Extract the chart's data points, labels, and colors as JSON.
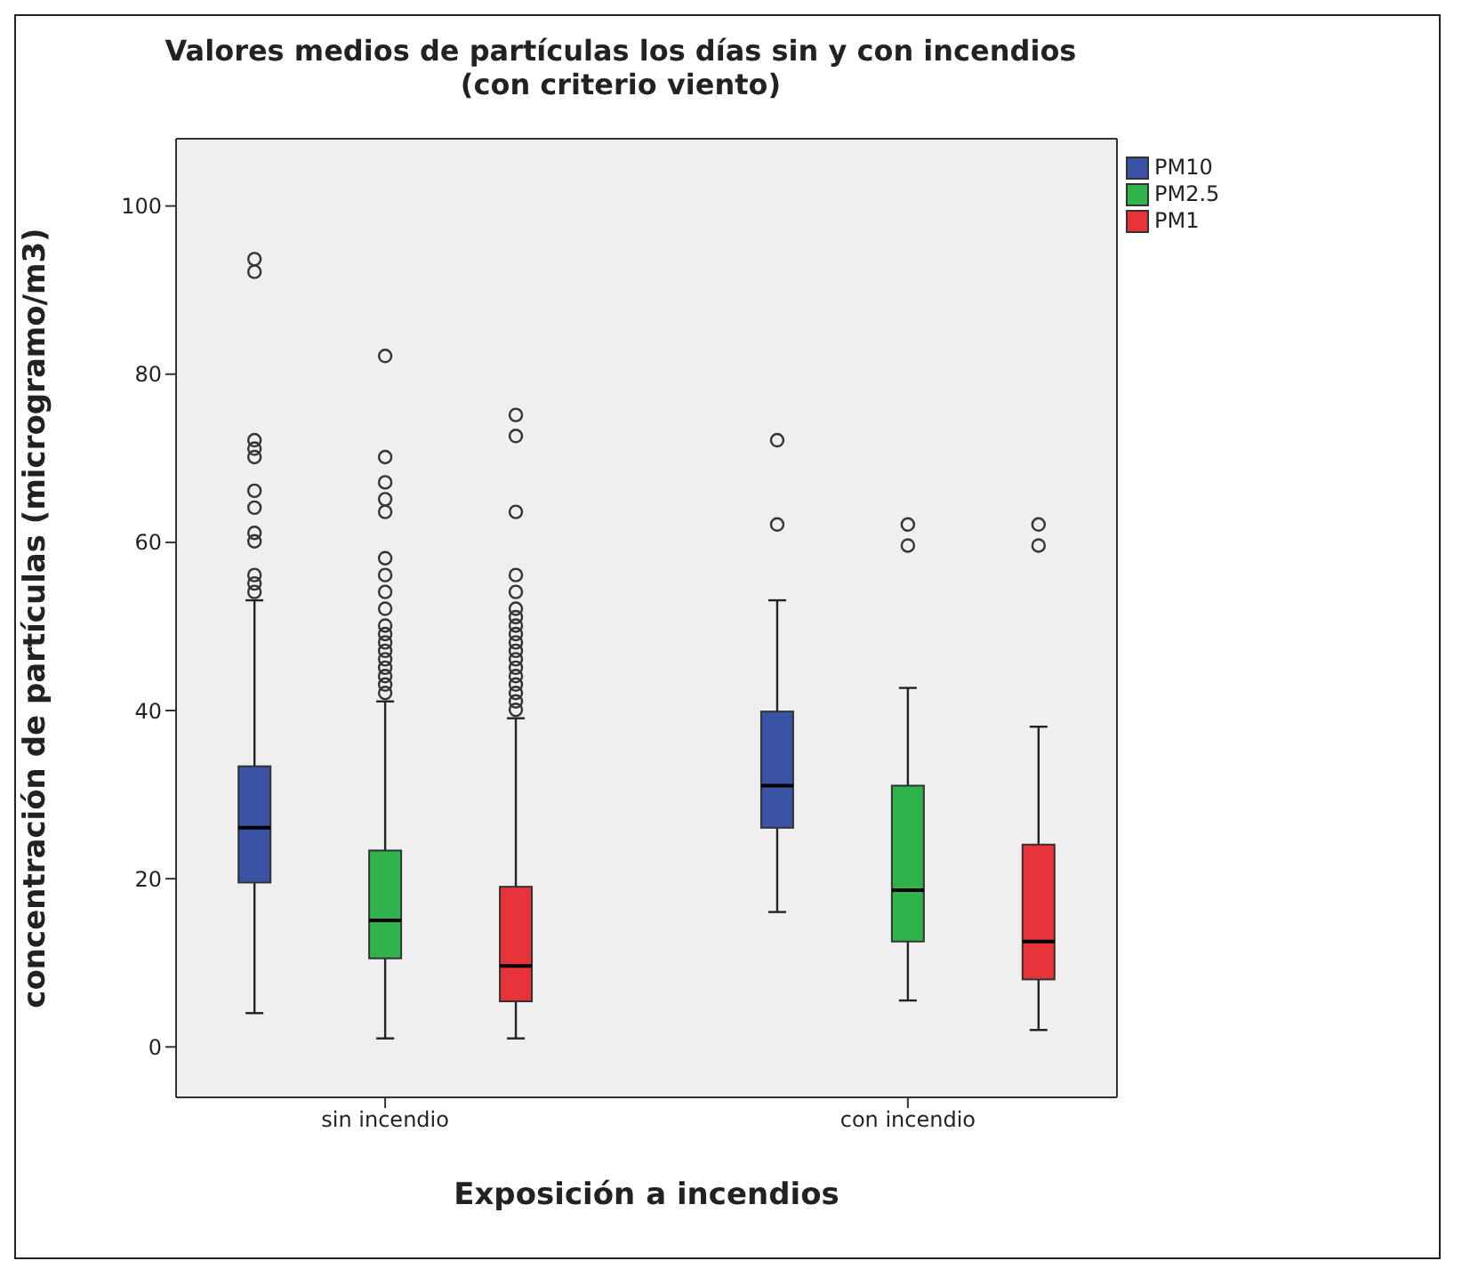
{
  "chart_data": {
    "type": "box",
    "title": "Valores medios de partículas los días sin y con incendios\n(con criterio viento)",
    "xlabel": "Exposición a incendios",
    "ylabel": "concentración de partículas (microgramo/m3)",
    "categories": [
      "sin incendio",
      "con incendio"
    ],
    "ylim": [
      -6,
      108
    ],
    "yticks": [
      0,
      20,
      40,
      60,
      80,
      100
    ],
    "grid": false,
    "legend": "top right",
    "series": [
      {
        "name": "PM10",
        "color": "#3a53a4",
        "boxes": [
          {
            "low": 4,
            "q1": 19.5,
            "median": 26,
            "q3": 33.3,
            "high": 53,
            "outliers": [
              54,
              55,
              56,
              60,
              61,
              64,
              66,
              70,
              71,
              72,
              92,
              93.5
            ]
          },
          {
            "low": 16,
            "q1": 26,
            "median": 31,
            "q3": 39.8,
            "high": 53,
            "outliers": [
              62,
              72
            ]
          }
        ]
      },
      {
        "name": "PM2.5",
        "color": "#2fb34a",
        "boxes": [
          {
            "low": 1,
            "q1": 10.5,
            "median": 15,
            "q3": 23.3,
            "high": 41,
            "outliers": [
              42,
              43,
              44,
              45,
              46,
              47,
              48,
              49,
              50,
              52,
              54,
              56,
              58,
              63.5,
              65,
              67,
              70,
              82
            ]
          },
          {
            "low": 5.5,
            "q1": 12.5,
            "median": 18.6,
            "q3": 31,
            "high": 42.6,
            "outliers": [
              59.5,
              62
            ]
          }
        ]
      },
      {
        "name": "PM1",
        "color": "#e8323a",
        "boxes": [
          {
            "low": 1,
            "q1": 5.4,
            "median": 9.6,
            "q3": 19,
            "high": 39,
            "outliers": [
              40,
              41,
              42,
              43,
              44,
              45,
              46,
              47,
              48,
              49,
              50,
              51,
              52,
              54,
              56,
              63.5,
              72.5,
              75
            ]
          },
          {
            "low": 2,
            "q1": 8,
            "median": 12.5,
            "q3": 24,
            "high": 38,
            "outliers": [
              59.5,
              62
            ]
          }
        ]
      }
    ]
  }
}
